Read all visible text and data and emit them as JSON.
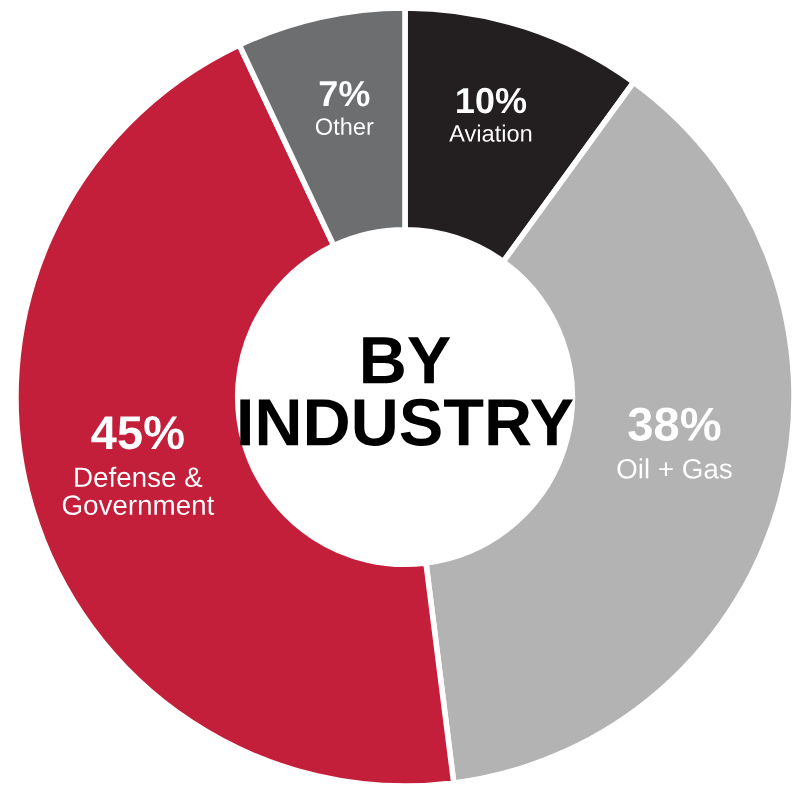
{
  "chart_data": {
    "type": "donut",
    "title": "BY INDUSTRY",
    "categories": [
      "Aviation",
      "Oil + Gas",
      "Defense & Government",
      "Other"
    ],
    "values": [
      10,
      38,
      45,
      7
    ],
    "value_labels": [
      "10%",
      "38%",
      "45%",
      "7%"
    ],
    "colors": [
      "#231f20",
      "#b3b3b3",
      "#c41f3a",
      "#6d6e70"
    ],
    "legend": false
  }
}
